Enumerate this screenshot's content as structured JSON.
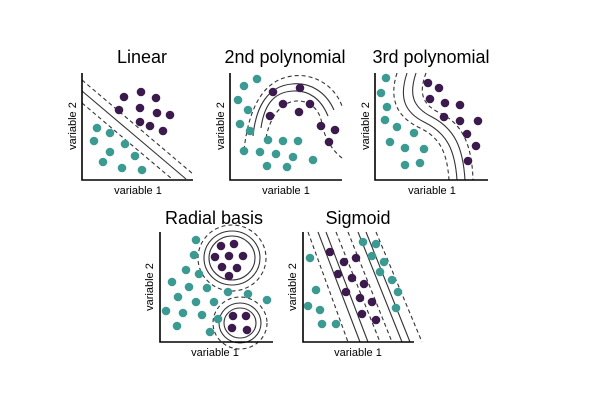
{
  "colors": {
    "class_a": "#3b9a92",
    "class_b": "#3d1a4d",
    "axis": "#000000",
    "boundary": "#333333"
  },
  "panels": [
    {
      "id": "linear",
      "title": "Linear",
      "xlabel": "variable 1",
      "ylabel": "variable 2"
    },
    {
      "id": "poly2",
      "title": "2nd polynomial",
      "xlabel": "variable 1",
      "ylabel": "variable 2"
    },
    {
      "id": "poly3",
      "title": "3rd polynomial",
      "xlabel": "variable 1",
      "ylabel": "variable 2"
    },
    {
      "id": "rbf",
      "title": "Radial basis",
      "xlabel": "variable 1",
      "ylabel": "variable 2"
    },
    {
      "id": "sigmoid",
      "title": "Sigmoid",
      "xlabel": "variable 1",
      "ylabel": "variable 2"
    }
  ]
}
